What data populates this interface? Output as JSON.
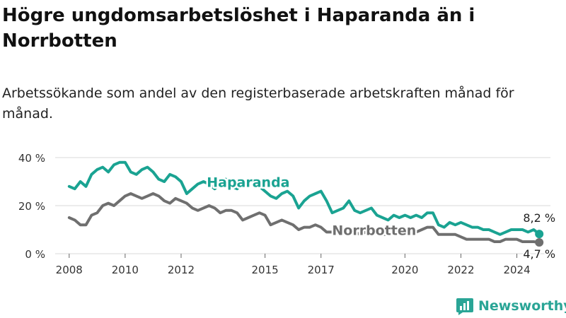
{
  "title": "Högre ungdomsarbetslöshet i Haparanda än i Norrbotten",
  "subtitle": "Arbetssökande som andel av den registerbaserade arbetskraften månad för månad.",
  "brand": {
    "name": "Newsworthy",
    "color": "#2aa596",
    "icon": "bar-chart-logo-icon"
  },
  "chart_data": {
    "type": "line",
    "x_unit": "year (fractional, monthly data)",
    "ylim": [
      0,
      40
    ],
    "xlim": [
      2007.5,
      2025.2
    ],
    "y_ticks": [
      0,
      20,
      40
    ],
    "y_tick_labels": [
      "0 %",
      "20 %",
      "40 %"
    ],
    "x_ticks": [
      2008,
      2010,
      2012,
      2015,
      2017,
      2020,
      2022,
      2024
    ],
    "x_tick_labels": [
      "2008",
      "2010",
      "2012",
      "2015",
      "2017",
      "2020",
      "2022",
      "2024"
    ],
    "grid": true,
    "legend": "inline labels",
    "series": [
      {
        "name": "Haparanda",
        "color": "#1aa392",
        "end_label": "8,2 %",
        "x": [
          2008.0,
          2008.2,
          2008.4,
          2008.6,
          2008.8,
          2009.0,
          2009.2,
          2009.4,
          2009.6,
          2009.8,
          2010.0,
          2010.2,
          2010.4,
          2010.6,
          2010.8,
          2011.0,
          2011.2,
          2011.4,
          2011.6,
          2011.8,
          2012.0,
          2012.2,
          2012.4,
          2012.6,
          2012.8,
          2013.0,
          2013.2,
          2013.4,
          2013.6,
          2013.8,
          2014.0,
          2014.2,
          2014.4,
          2014.6,
          2014.8,
          2015.0,
          2015.2,
          2015.4,
          2015.6,
          2015.8,
          2016.0,
          2016.2,
          2016.4,
          2016.6,
          2016.8,
          2017.0,
          2017.2,
          2017.4,
          2017.6,
          2017.8,
          2018.0,
          2018.2,
          2018.4,
          2018.6,
          2018.8,
          2019.0,
          2019.2,
          2019.4,
          2019.6,
          2019.8,
          2020.0,
          2020.2,
          2020.4,
          2020.6,
          2020.8,
          2021.0,
          2021.2,
          2021.4,
          2021.6,
          2021.8,
          2022.0,
          2022.2,
          2022.4,
          2022.6,
          2022.8,
          2023.0,
          2023.2,
          2023.4,
          2023.6,
          2023.8,
          2024.0,
          2024.2,
          2024.4,
          2024.6,
          2024.8
        ],
        "values": [
          28,
          27,
          30,
          28,
          33,
          35,
          36,
          34,
          37,
          38,
          38,
          34,
          33,
          35,
          36,
          34,
          31,
          30,
          33,
          32,
          30,
          25,
          27,
          29,
          30,
          29,
          27,
          29,
          31,
          28,
          27,
          29,
          31,
          30,
          28,
          26,
          24,
          23,
          25,
          26,
          24,
          19,
          22,
          24,
          25,
          26,
          22,
          17,
          18,
          19,
          22,
          18,
          17,
          18,
          19,
          16,
          15,
          14,
          16,
          15,
          16,
          15,
          16,
          15,
          17,
          17,
          12,
          11,
          13,
          12,
          13,
          12,
          11,
          11,
          10,
          10,
          9,
          8,
          9,
          10,
          10,
          10,
          9,
          10,
          8.2
        ]
      },
      {
        "name": "Norrbotten",
        "color": "#6f6f6f",
        "end_label": "4,7 %",
        "x": [
          2008.0,
          2008.2,
          2008.4,
          2008.6,
          2008.8,
          2009.0,
          2009.2,
          2009.4,
          2009.6,
          2009.8,
          2010.0,
          2010.2,
          2010.4,
          2010.6,
          2010.8,
          2011.0,
          2011.2,
          2011.4,
          2011.6,
          2011.8,
          2012.0,
          2012.2,
          2012.4,
          2012.6,
          2012.8,
          2013.0,
          2013.2,
          2013.4,
          2013.6,
          2013.8,
          2014.0,
          2014.2,
          2014.4,
          2014.6,
          2014.8,
          2015.0,
          2015.2,
          2015.4,
          2015.6,
          2015.8,
          2016.0,
          2016.2,
          2016.4,
          2016.6,
          2016.8,
          2017.0,
          2017.2,
          2017.4,
          2017.6,
          2017.8,
          2018.0,
          2018.2,
          2018.4,
          2018.6,
          2018.8,
          2019.0,
          2019.2,
          2019.4,
          2019.6,
          2019.8,
          2020.0,
          2020.2,
          2020.4,
          2020.6,
          2020.8,
          2021.0,
          2021.2,
          2021.4,
          2021.6,
          2021.8,
          2022.0,
          2022.2,
          2022.4,
          2022.6,
          2022.8,
          2023.0,
          2023.2,
          2023.4,
          2023.6,
          2023.8,
          2024.0,
          2024.2,
          2024.4,
          2024.6,
          2024.8
        ],
        "values": [
          15,
          14,
          12,
          12,
          16,
          17,
          20,
          21,
          20,
          22,
          24,
          25,
          24,
          23,
          24,
          25,
          24,
          22,
          21,
          23,
          22,
          21,
          19,
          18,
          19,
          20,
          19,
          17,
          18,
          18,
          17,
          14,
          15,
          16,
          17,
          16,
          12,
          13,
          14,
          13,
          12,
          10,
          11,
          11,
          12,
          11,
          9,
          9,
          10,
          10,
          11,
          9,
          8,
          9,
          10,
          9,
          8,
          8,
          9,
          9,
          10,
          9,
          9,
          10,
          11,
          11,
          8,
          8,
          8,
          8,
          7,
          6,
          6,
          6,
          6,
          6,
          5,
          5,
          6,
          6,
          6,
          5,
          5,
          5,
          4.7
        ]
      }
    ]
  }
}
